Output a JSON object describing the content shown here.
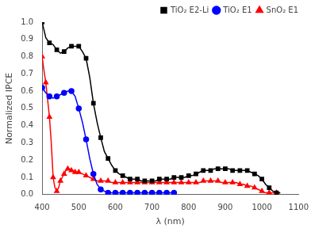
{
  "chart_data": {
    "type": "line",
    "xlabel": "λ (nm)",
    "ylabel": "Normalized IPCE",
    "xlim": [
      400,
      1100
    ],
    "ylim": [
      0,
      1.0
    ],
    "xticks": [
      400,
      500,
      600,
      700,
      800,
      900,
      1000,
      1100
    ],
    "yticks": [
      {
        "value": 0.0,
        "label": "0.0"
      },
      0.1,
      0.2,
      0.3,
      0.4,
      0.5,
      0.6,
      0.7,
      0.8,
      0.9,
      {
        "value": 1.0,
        "label": "1.0"
      }
    ],
    "grid": false,
    "legend": "upper right",
    "series": [
      {
        "name": "TiO₂ E2-Li",
        "color": "black",
        "marker": "square",
        "x": [
          400,
          410,
          420,
          430,
          440,
          450,
          460,
          470,
          480,
          490,
          500,
          510,
          520,
          530,
          540,
          550,
          560,
          570,
          580,
          590,
          600,
          610,
          620,
          630,
          640,
          650,
          660,
          670,
          680,
          690,
          700,
          710,
          720,
          730,
          740,
          750,
          760,
          770,
          780,
          790,
          800,
          810,
          820,
          830,
          840,
          850,
          860,
          870,
          880,
          890,
          900,
          910,
          920,
          930,
          940,
          950,
          960,
          970,
          980,
          990,
          1000,
          1010,
          1020,
          1030,
          1040,
          1050
        ],
        "values": [
          1.0,
          0.91,
          0.88,
          0.87,
          0.84,
          0.82,
          0.83,
          0.85,
          0.86,
          0.86,
          0.86,
          0.83,
          0.79,
          0.68,
          0.53,
          0.42,
          0.33,
          0.25,
          0.21,
          0.17,
          0.14,
          0.12,
          0.11,
          0.1,
          0.09,
          0.09,
          0.09,
          0.08,
          0.08,
          0.08,
          0.08,
          0.08,
          0.09,
          0.09,
          0.09,
          0.09,
          0.1,
          0.1,
          0.1,
          0.1,
          0.11,
          0.11,
          0.12,
          0.13,
          0.14,
          0.14,
          0.14,
          0.15,
          0.15,
          0.15,
          0.15,
          0.15,
          0.14,
          0.14,
          0.14,
          0.14,
          0.14,
          0.13,
          0.12,
          0.11,
          0.09,
          0.06,
          0.04,
          0.02,
          0.01,
          0.01
        ]
      },
      {
        "name": "TiO₂ E1",
        "color": "blue",
        "marker": "circle",
        "x": [
          400,
          410,
          420,
          430,
          440,
          450,
          460,
          470,
          480,
          490,
          500,
          510,
          520,
          530,
          540,
          550,
          560,
          570,
          580,
          590,
          600,
          610,
          620,
          630,
          640,
          650,
          660,
          670,
          680,
          690,
          700,
          710,
          720,
          730,
          740,
          750,
          760
        ],
        "values": [
          0.62,
          0.59,
          0.57,
          0.56,
          0.57,
          0.58,
          0.59,
          0.6,
          0.6,
          0.57,
          0.5,
          0.42,
          0.32,
          0.21,
          0.12,
          0.06,
          0.03,
          0.02,
          0.01,
          0.01,
          0.01,
          0.01,
          0.01,
          0.01,
          0.01,
          0.01,
          0.01,
          0.01,
          0.01,
          0.01,
          0.01,
          0.01,
          0.01,
          0.01,
          0.01,
          0.01,
          0.01
        ]
      },
      {
        "name": "SnO₂ E1",
        "color": "red",
        "marker": "triangle",
        "x": [
          400,
          405,
          410,
          415,
          420,
          425,
          430,
          435,
          440,
          445,
          450,
          455,
          460,
          465,
          470,
          475,
          480,
          485,
          490,
          495,
          500,
          510,
          520,
          530,
          540,
          550,
          560,
          570,
          580,
          590,
          600,
          610,
          620,
          630,
          640,
          650,
          660,
          670,
          680,
          690,
          700,
          710,
          720,
          730,
          740,
          750,
          760,
          770,
          780,
          790,
          800,
          810,
          820,
          830,
          840,
          850,
          860,
          870,
          880,
          890,
          900,
          910,
          920,
          930,
          940,
          950,
          960,
          970,
          980,
          990,
          1000,
          1010,
          1020,
          1030,
          1040,
          1050
        ],
        "values": [
          0.8,
          0.72,
          0.65,
          0.55,
          0.45,
          0.3,
          0.1,
          0.04,
          0.02,
          0.04,
          0.08,
          0.1,
          0.12,
          0.14,
          0.15,
          0.15,
          0.14,
          0.14,
          0.13,
          0.13,
          0.13,
          0.12,
          0.11,
          0.1,
          0.09,
          0.08,
          0.08,
          0.08,
          0.08,
          0.07,
          0.07,
          0.07,
          0.07,
          0.07,
          0.07,
          0.07,
          0.07,
          0.07,
          0.07,
          0.07,
          0.07,
          0.07,
          0.07,
          0.07,
          0.07,
          0.07,
          0.07,
          0.07,
          0.07,
          0.07,
          0.07,
          0.07,
          0.07,
          0.07,
          0.08,
          0.08,
          0.08,
          0.08,
          0.08,
          0.07,
          0.07,
          0.07,
          0.07,
          0.07,
          0.06,
          0.06,
          0.05,
          0.05,
          0.04,
          0.03,
          0.02,
          0.01,
          0.01,
          0.01,
          0.01,
          0.01
        ]
      }
    ]
  }
}
